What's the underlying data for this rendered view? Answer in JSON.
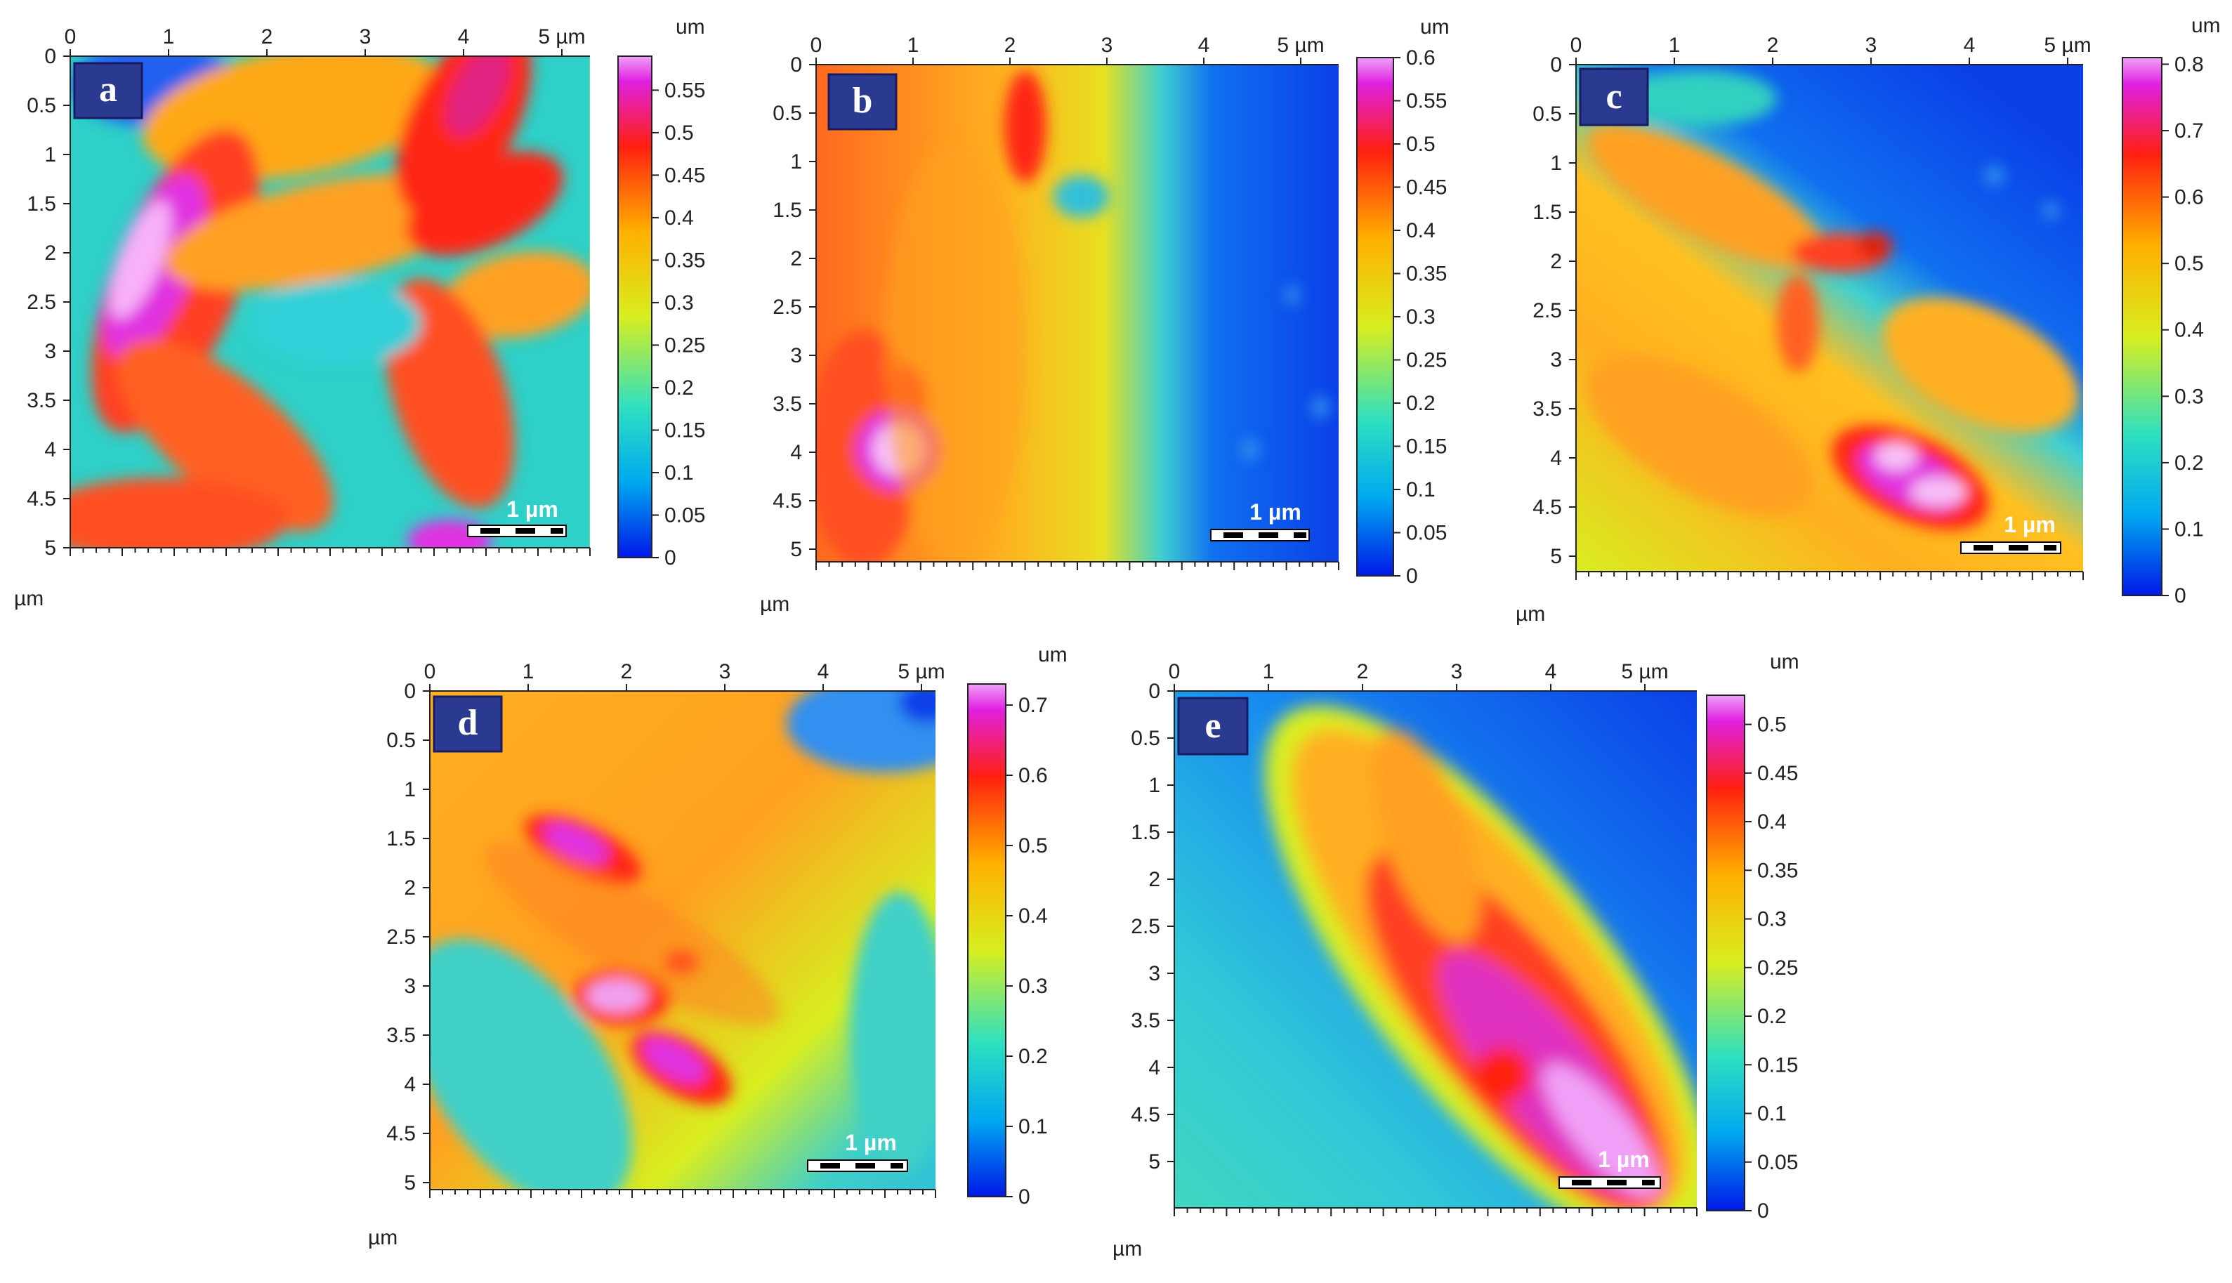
{
  "figure": {
    "panels": [
      {
        "id": "a",
        "label": "a",
        "x_ticks": [
          "0",
          "1",
          "2",
          "3",
          "4",
          "5 µm"
        ],
        "y_ticks": [
          "0",
          "0.5",
          "1",
          "1.5",
          "2",
          "2.5",
          "3",
          "3.5",
          "4",
          "4.5",
          "5"
        ],
        "axis_unit": "µm",
        "colorbar_unit": "um",
        "colorbar_ticks": [
          "0",
          "0.05",
          "0.1",
          "0.15",
          "0.2",
          "0.25",
          "0.3",
          "0.35",
          "0.4",
          "0.45",
          "0.5",
          "0.55"
        ],
        "colorbar_max": 0.59,
        "scale_bar": "1 µm"
      },
      {
        "id": "b",
        "label": "b",
        "x_ticks": [
          "0",
          "1",
          "2",
          "3",
          "4",
          "5 µm"
        ],
        "y_ticks": [
          "0",
          "0.5",
          "1",
          "1.5",
          "2",
          "2.5",
          "3",
          "3.5",
          "4",
          "4.5",
          "5"
        ],
        "axis_unit": "µm",
        "colorbar_unit": "um",
        "colorbar_ticks": [
          "0",
          "0.05",
          "0.1",
          "0.15",
          "0.2",
          "0.25",
          "0.3",
          "0.35",
          "0.4",
          "0.45",
          "0.5",
          "0.55",
          "0.6"
        ],
        "colorbar_max": 0.6,
        "scale_bar": "1 µm"
      },
      {
        "id": "c",
        "label": "c",
        "x_ticks": [
          "0",
          "1",
          "2",
          "3",
          "4",
          "5 µm"
        ],
        "y_ticks": [
          "0",
          "0.5",
          "1",
          "1.5",
          "2",
          "2.5",
          "3",
          "3.5",
          "4",
          "4.5",
          "5"
        ],
        "axis_unit": "µm",
        "colorbar_unit": "um",
        "colorbar_ticks": [
          "0",
          "0.1",
          "0.2",
          "0.3",
          "0.4",
          "0.5",
          "0.6",
          "0.7",
          "0.8"
        ],
        "colorbar_max": 0.81,
        "scale_bar": "1 µm"
      },
      {
        "id": "d",
        "label": "d",
        "x_ticks": [
          "0",
          "1",
          "2",
          "3",
          "4",
          "5 µm"
        ],
        "y_ticks": [
          "0",
          "0.5",
          "1",
          "1.5",
          "2",
          "2.5",
          "3",
          "3.5",
          "4",
          "4.5",
          "5"
        ],
        "axis_unit": "µm",
        "colorbar_unit": "um",
        "colorbar_ticks": [
          "0",
          "0.1",
          "0.2",
          "0.3",
          "0.4",
          "0.5",
          "0.6",
          "0.7"
        ],
        "colorbar_max": 0.73,
        "scale_bar": "1 µm"
      },
      {
        "id": "e",
        "label": "e",
        "x_ticks": [
          "0",
          "1",
          "2",
          "3",
          "4",
          "5 µm"
        ],
        "y_ticks": [
          "0",
          "0.5",
          "1",
          "1.5",
          "2",
          "2.5",
          "3",
          "3.5",
          "4",
          "4.5",
          "5"
        ],
        "axis_unit": "µm",
        "colorbar_unit": "um",
        "colorbar_ticks": [
          "0",
          "0.05",
          "0.1",
          "0.15",
          "0.2",
          "0.25",
          "0.3",
          "0.35",
          "0.4",
          "0.45",
          "0.5"
        ],
        "colorbar_max": 0.53,
        "scale_bar": "1 µm"
      }
    ],
    "colormap": [
      "#0018e8",
      "#00a8f0",
      "#2ee0c0",
      "#d8ee20",
      "#ffb000",
      "#ff2010",
      "#e020e0",
      "#f0a0f8"
    ]
  }
}
